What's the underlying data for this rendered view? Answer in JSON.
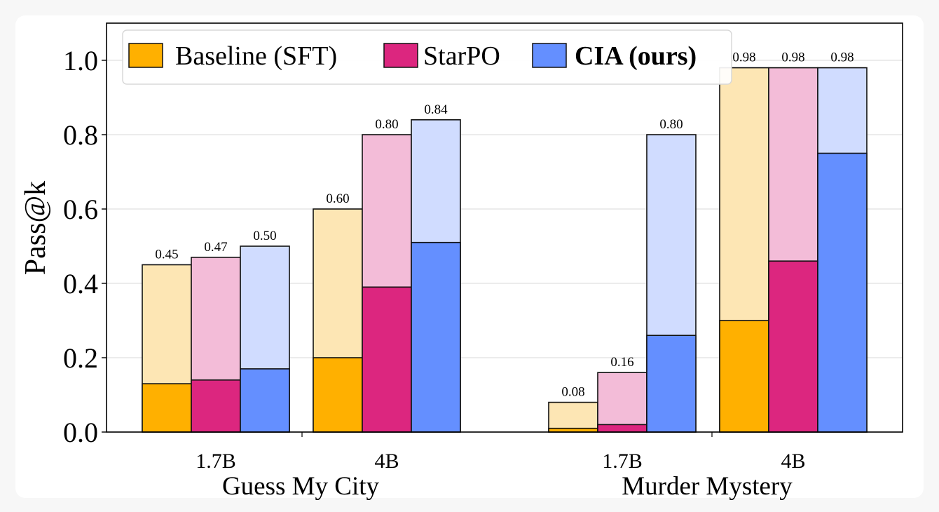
{
  "chart_data": {
    "type": "bar",
    "subtype": "overlaid-stacked",
    "ylabel": "Pass@k",
    "ylim": [
      0,
      1.1
    ],
    "yticks": [
      "0.0",
      "0.2",
      "0.4",
      "0.6",
      "0.8",
      "1.0"
    ],
    "grid": true,
    "legend_position": "top-left",
    "groups": [
      {
        "name": "Guess My City",
        "categories": [
          "1.7B",
          "4B"
        ]
      },
      {
        "name": "Murder Mystery",
        "categories": [
          "1.7B",
          "4B"
        ]
      }
    ],
    "series": [
      {
        "name": "Baseline (SFT)",
        "bold": false,
        "color": "#FFB000",
        "light_color": "#FDE6B4",
        "pass_at_k": [
          0.45,
          0.6,
          0.08,
          0.98
        ],
        "pass_at_k_labels": [
          "0.45",
          "0.60",
          "0.08",
          "0.98"
        ],
        "pass_at_1": [
          0.13,
          0.2,
          0.01,
          0.3
        ]
      },
      {
        "name": "StarPO",
        "bold": false,
        "color": "#DC267F",
        "light_color": "#F3BCD8",
        "pass_at_k": [
          0.47,
          0.8,
          0.16,
          0.98
        ],
        "pass_at_k_labels": [
          "0.47",
          "0.80",
          "0.16",
          "0.98"
        ],
        "pass_at_1": [
          0.14,
          0.39,
          0.02,
          0.46
        ]
      },
      {
        "name": "CIA (ours)",
        "bold": true,
        "color": "#648FFF",
        "light_color": "#D0DCFF",
        "pass_at_k": [
          0.5,
          0.84,
          0.8,
          0.98
        ],
        "pass_at_k_labels": [
          "0.50",
          "0.84",
          "0.80",
          "0.98"
        ],
        "pass_at_1": [
          0.17,
          0.51,
          0.26,
          0.75
        ]
      }
    ]
  }
}
